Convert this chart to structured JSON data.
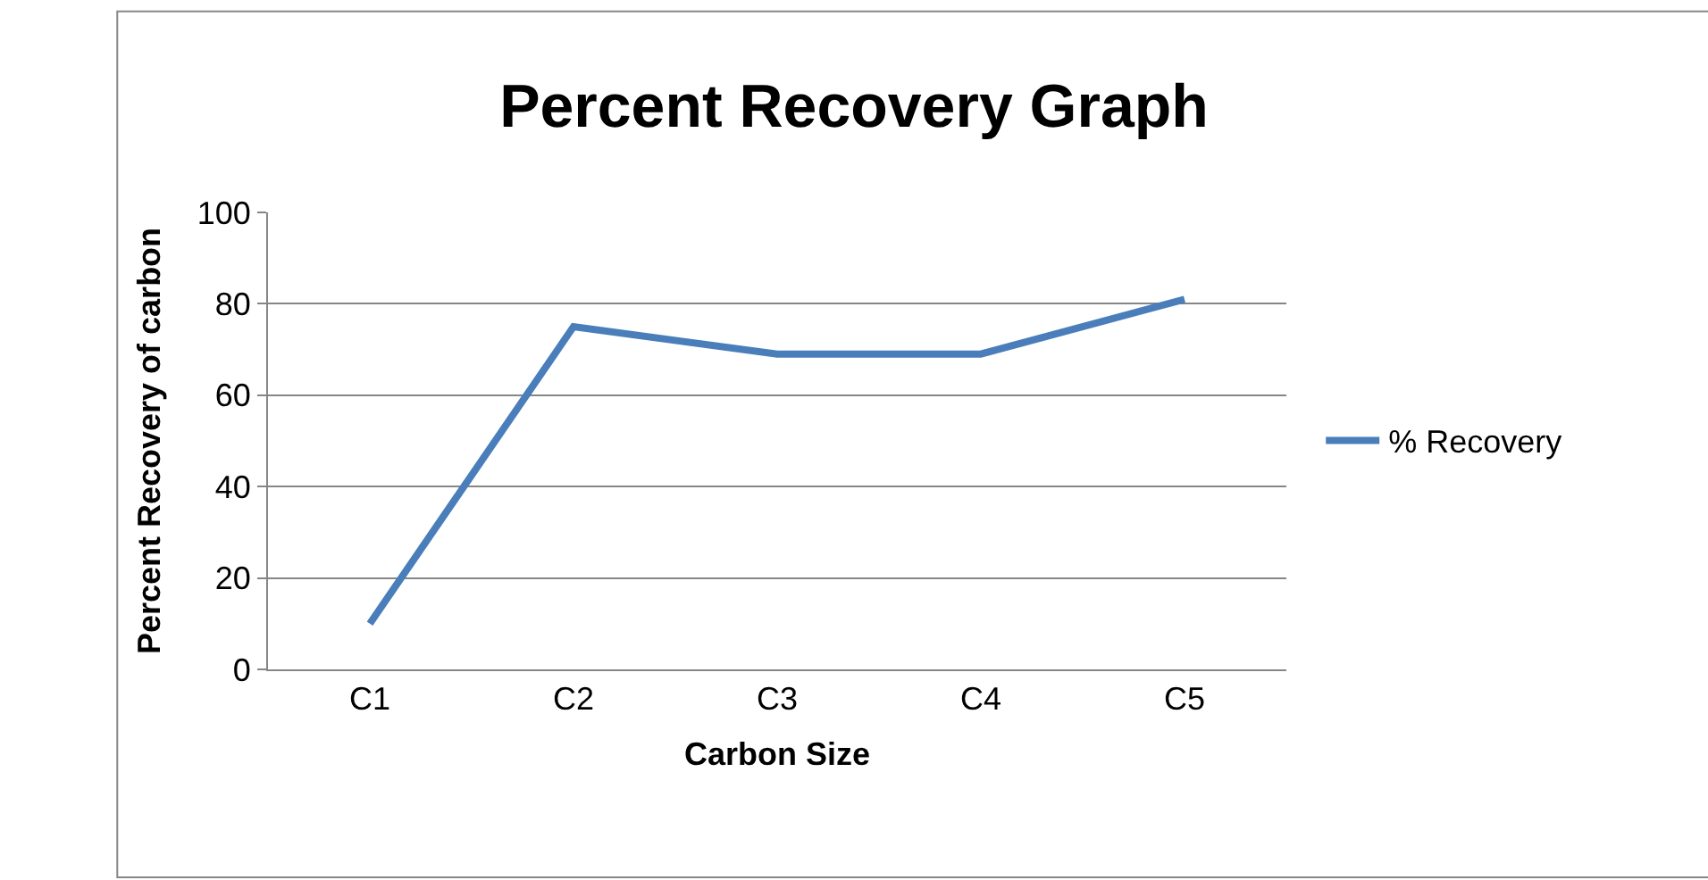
{
  "chart_data": {
    "type": "line",
    "title": "Percent Recovery Graph",
    "xlabel": "Carbon Size",
    "ylabel": "Percent Recovery of carbon",
    "categories": [
      "C1",
      "C2",
      "C3",
      "C4",
      "C5"
    ],
    "series": [
      {
        "name": "% Recovery",
        "color": "#4a7ebb",
        "values": [
          10,
          75,
          69,
          69,
          81
        ]
      }
    ],
    "ylim": [
      0,
      100
    ],
    "yticks": [
      0,
      20,
      40,
      60,
      80,
      100
    ],
    "grid": "y",
    "legend": "right",
    "marker": "none",
    "line_style": "solid"
  }
}
